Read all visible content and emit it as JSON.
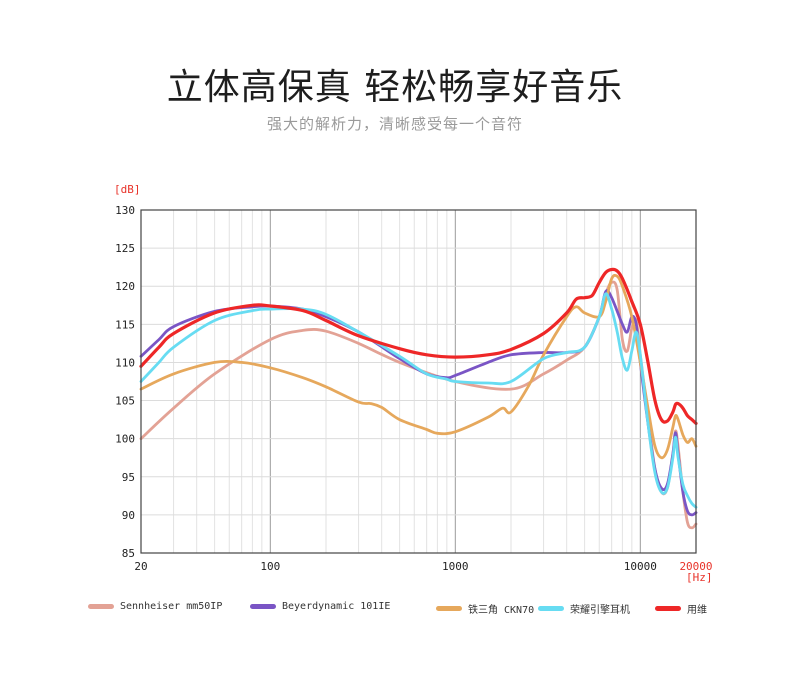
{
  "header": {
    "title": "立体高保真 轻松畅享好音乐",
    "subtitle": "强大的解析力，清晰感受每一个音符"
  },
  "chart_data": {
    "type": "line",
    "title": "",
    "ylabel": "[dB]",
    "xlabel": "[Hz]",
    "x_scale": "log",
    "xlim": [
      20,
      20000
    ],
    "ylim": [
      85,
      130
    ],
    "x_ticks": [
      20,
      100,
      1000,
      10000,
      20000
    ],
    "x_tick_labels": [
      "20",
      "100",
      "1000",
      "10000",
      "20000"
    ],
    "x_tick_highlight": "20000",
    "y_ticks": [
      85,
      90,
      95,
      100,
      105,
      110,
      115,
      120,
      125,
      130
    ],
    "y_tick_labels": [
      "85",
      "90",
      "95",
      "100",
      "105",
      "110",
      "115",
      "120",
      "125",
      "130"
    ],
    "grid": true,
    "legend_position": "bottom",
    "series": [
      {
        "name": "Sennheiser mm50IP",
        "color": "#e3a295",
        "points": [
          [
            20,
            100
          ],
          [
            30,
            104
          ],
          [
            50,
            108.5
          ],
          [
            100,
            113
          ],
          [
            150,
            114.2
          ],
          [
            200,
            114.1
          ],
          [
            300,
            112.5
          ],
          [
            500,
            110
          ],
          [
            1000,
            107.5
          ],
          [
            2000,
            106.5
          ],
          [
            3000,
            108.5
          ],
          [
            4000,
            110.3
          ],
          [
            5000,
            112
          ],
          [
            6000,
            116
          ],
          [
            6500,
            119
          ],
          [
            7000,
            120.5
          ],
          [
            7500,
            119.5
          ],
          [
            8000,
            113
          ],
          [
            8500,
            111.5
          ],
          [
            9000,
            114.5
          ],
          [
            9500,
            115.5
          ],
          [
            10000,
            111
          ],
          [
            11000,
            103
          ],
          [
            12000,
            96
          ],
          [
            13000,
            93
          ],
          [
            14000,
            93.5
          ],
          [
            15000,
            98
          ],
          [
            15500,
            101
          ],
          [
            16000,
            99
          ],
          [
            17000,
            93
          ],
          [
            18000,
            89
          ],
          [
            19000,
            88.3
          ],
          [
            20000,
            88.8
          ]
        ]
      },
      {
        "name": "Beyerdynamic 101IE",
        "color": "#7a55c5",
        "points": [
          [
            20,
            110.8
          ],
          [
            25,
            113
          ],
          [
            30,
            114.7
          ],
          [
            50,
            116.7
          ],
          [
            80,
            117.3
          ],
          [
            100,
            117.4
          ],
          [
            150,
            117
          ],
          [
            200,
            116
          ],
          [
            300,
            114
          ],
          [
            500,
            110.5
          ],
          [
            700,
            108.5
          ],
          [
            900,
            108
          ],
          [
            1000,
            108.3
          ],
          [
            1500,
            110
          ],
          [
            2000,
            111
          ],
          [
            3000,
            111.3
          ],
          [
            4000,
            111.3
          ],
          [
            5000,
            112
          ],
          [
            6000,
            116
          ],
          [
            6500,
            119.3
          ],
          [
            7000,
            118.5
          ],
          [
            8000,
            115
          ],
          [
            8500,
            114
          ],
          [
            9000,
            116
          ],
          [
            9500,
            115
          ],
          [
            10000,
            110
          ],
          [
            11000,
            102
          ],
          [
            12000,
            96
          ],
          [
            13000,
            93.5
          ],
          [
            14000,
            94
          ],
          [
            15000,
            98
          ],
          [
            15500,
            100.8
          ],
          [
            16000,
            98
          ],
          [
            17000,
            93
          ],
          [
            18000,
            90.5
          ],
          [
            19000,
            90
          ],
          [
            20000,
            90.3
          ]
        ]
      },
      {
        "name": "铁三角 CKN70",
        "color": "#e6a85c",
        "points": [
          [
            20,
            106.5
          ],
          [
            30,
            108.5
          ],
          [
            50,
            110
          ],
          [
            70,
            110
          ],
          [
            100,
            109.3
          ],
          [
            150,
            108
          ],
          [
            200,
            106.8
          ],
          [
            300,
            104.8
          ],
          [
            350,
            104.6
          ],
          [
            400,
            104.1
          ],
          [
            500,
            102.5
          ],
          [
            700,
            101.2
          ],
          [
            800,
            100.7
          ],
          [
            1000,
            100.9
          ],
          [
            1500,
            102.8
          ],
          [
            1800,
            104
          ],
          [
            2000,
            103.5
          ],
          [
            2500,
            107
          ],
          [
            3000,
            111
          ],
          [
            4000,
            116
          ],
          [
            4500,
            117.3
          ],
          [
            5000,
            116.5
          ],
          [
            6000,
            116
          ],
          [
            6500,
            118
          ],
          [
            7000,
            121
          ],
          [
            7500,
            121.3
          ],
          [
            8000,
            120
          ],
          [
            9000,
            116
          ],
          [
            10000,
            110
          ],
          [
            11000,
            104
          ],
          [
            12000,
            99
          ],
          [
            13000,
            97.5
          ],
          [
            14000,
            98.5
          ],
          [
            15000,
            101.5
          ],
          [
            15500,
            103
          ],
          [
            16000,
            102.5
          ],
          [
            17000,
            100.5
          ],
          [
            18000,
            99.5
          ],
          [
            19000,
            100
          ],
          [
            20000,
            99
          ]
        ]
      },
      {
        "name": "荣耀引擎耳机",
        "color": "#67dcf2",
        "points": [
          [
            20,
            107.5
          ],
          [
            25,
            110
          ],
          [
            30,
            112
          ],
          [
            50,
            115.5
          ],
          [
            80,
            116.8
          ],
          [
            100,
            117
          ],
          [
            150,
            117
          ],
          [
            200,
            116.3
          ],
          [
            300,
            114
          ],
          [
            500,
            110.8
          ],
          [
            700,
            108.5
          ],
          [
            900,
            107.8
          ],
          [
            1000,
            107.5
          ],
          [
            1500,
            107.3
          ],
          [
            2000,
            107.5
          ],
          [
            3000,
            110.5
          ],
          [
            4000,
            111.3
          ],
          [
            5000,
            112
          ],
          [
            6000,
            116
          ],
          [
            6500,
            119
          ],
          [
            7000,
            117
          ],
          [
            7500,
            114
          ],
          [
            8000,
            110.5
          ],
          [
            8500,
            109
          ],
          [
            9000,
            111.5
          ],
          [
            9500,
            114
          ],
          [
            10000,
            111
          ],
          [
            11000,
            102
          ],
          [
            12000,
            95.5
          ],
          [
            13000,
            93
          ],
          [
            14000,
            93.5
          ],
          [
            15000,
            97.5
          ],
          [
            15500,
            100.2
          ],
          [
            16000,
            97.5
          ],
          [
            17000,
            94
          ],
          [
            18000,
            92.5
          ],
          [
            19000,
            91.5
          ],
          [
            20000,
            91
          ]
        ]
      },
      {
        "name": "用维",
        "color": "#ee2727",
        "points": [
          [
            20,
            109.5
          ],
          [
            25,
            112
          ],
          [
            30,
            113.8
          ],
          [
            50,
            116.5
          ],
          [
            80,
            117.5
          ],
          [
            100,
            117.4
          ],
          [
            150,
            116.8
          ],
          [
            200,
            115.5
          ],
          [
            300,
            113.5
          ],
          [
            500,
            111.8
          ],
          [
            700,
            111
          ],
          [
            1000,
            110.7
          ],
          [
            1500,
            111
          ],
          [
            2000,
            111.7
          ],
          [
            3000,
            113.8
          ],
          [
            4000,
            116.5
          ],
          [
            4500,
            118.3
          ],
          [
            5000,
            118.5
          ],
          [
            5500,
            118.8
          ],
          [
            6000,
            120.5
          ],
          [
            6500,
            121.8
          ],
          [
            7000,
            122.2
          ],
          [
            7500,
            122
          ],
          [
            8000,
            121
          ],
          [
            9000,
            118
          ],
          [
            10000,
            115
          ],
          [
            11000,
            110
          ],
          [
            12000,
            105
          ],
          [
            13000,
            102.5
          ],
          [
            14000,
            102.3
          ],
          [
            15000,
            103.5
          ],
          [
            15500,
            104.5
          ],
          [
            16000,
            104.6
          ],
          [
            17000,
            104
          ],
          [
            18000,
            103
          ],
          [
            19000,
            102.5
          ],
          [
            20000,
            102
          ]
        ]
      }
    ]
  }
}
